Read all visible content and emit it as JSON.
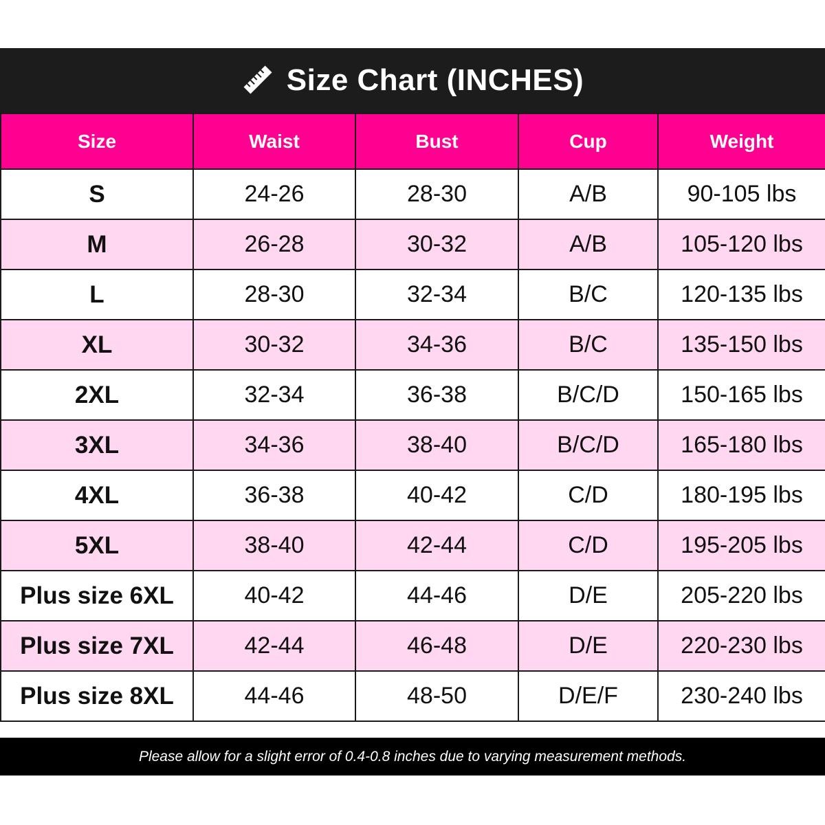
{
  "title": "Size Chart (INCHES)",
  "icons": {
    "title_icon": "ruler-icon"
  },
  "colors": {
    "title_bar": "#1c1c1c",
    "header": "#ff0090",
    "row_alt": "#ffd7f1",
    "row": "#ffffff",
    "footer": "#000000"
  },
  "table": {
    "headers": [
      "Size",
      "Waist",
      "Bust",
      "Cup",
      "Weight"
    ],
    "rows": [
      [
        "S",
        "24-26",
        "28-30",
        "A/B",
        "90-105 lbs"
      ],
      [
        "M",
        "26-28",
        "30-32",
        "A/B",
        "105-120 lbs"
      ],
      [
        "L",
        "28-30",
        "32-34",
        "B/C",
        "120-135 lbs"
      ],
      [
        "XL",
        "30-32",
        "34-36",
        "B/C",
        "135-150 lbs"
      ],
      [
        "2XL",
        "32-34",
        "36-38",
        "B/C/D",
        "150-165 lbs"
      ],
      [
        "3XL",
        "34-36",
        "38-40",
        "B/C/D",
        "165-180 lbs"
      ],
      [
        "4XL",
        "36-38",
        "40-42",
        "C/D",
        "180-195 lbs"
      ],
      [
        "5XL",
        "38-40",
        "42-44",
        "C/D",
        "195-205 lbs"
      ],
      [
        "Plus size 6XL",
        "40-42",
        "44-46",
        "D/E",
        "205-220 lbs"
      ],
      [
        "Plus size 7XL",
        "42-44",
        "46-48",
        "D/E",
        "220-230 lbs"
      ],
      [
        "Plus size 8XL",
        "44-46",
        "48-50",
        "D/E/F",
        "230-240 lbs"
      ]
    ]
  },
  "footer": "Please allow for a slight error of 0.4-0.8 inches due to varying measurement methods."
}
